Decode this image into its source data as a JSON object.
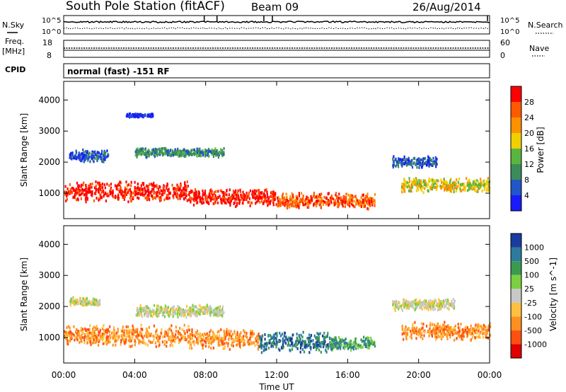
{
  "header": {
    "station": "South Pole Station (fitACF)",
    "beam": "Beam 09",
    "date": "26/Aug/2014"
  },
  "top_panels": {
    "nsky_label": "N.Sky",
    "nsearch_label": "N.Search",
    "noise_ticks": [
      "10^5",
      "10^0"
    ],
    "freq_label": "Freq.",
    "freq_unit": "[MHz]",
    "freq_ticks": [
      "18",
      "8"
    ],
    "nave_label": "Nave",
    "nave_ticks": [
      "60",
      "0"
    ],
    "cpid_label": "CPID",
    "cpid_text": "normal (fast) -151 RF"
  },
  "colors": {
    "power": [
      "#1a1aff",
      "#2255c8",
      "#3a8c5a",
      "#5ab440",
      "#f0d000",
      "#ff9000",
      "#ff5a00",
      "#ff0000"
    ],
    "velocity": [
      "#1a3ca0",
      "#2e7a9e",
      "#3a9a50",
      "#7ad040",
      "#c8c8c8",
      "#ffc040",
      "#ff9020",
      "#ff5010",
      "#e00000"
    ]
  },
  "chart_data": [
    {
      "type": "heatmap",
      "ylabel": "Slant Range [km]",
      "xlabel": "Time UT",
      "x_ticks": [
        "00:00",
        "04:00",
        "08:00",
        "12:00",
        "16:00",
        "20:00",
        "00:00"
      ],
      "y_ticks": [
        1000,
        2000,
        3000,
        4000
      ],
      "ylim": [
        180,
        4600
      ],
      "colorbar": {
        "label": "Power [dB]",
        "ticks": [
          4,
          8,
          12,
          16,
          20,
          24,
          28
        ]
      },
      "scatter_bands": [
        {
          "t_start": 0,
          "t_end": 7,
          "range_center": 1050,
          "range_width": 350,
          "level": 7
        },
        {
          "t_start": 7,
          "t_end": 12,
          "range_center": 850,
          "range_width": 300,
          "level": 7
        },
        {
          "t_start": 12,
          "t_end": 17.5,
          "range_center": 750,
          "range_width": 280,
          "level": 6
        },
        {
          "t_start": 19,
          "t_end": 24,
          "range_center": 1250,
          "range_width": 250,
          "level": 4
        },
        {
          "t_start": 0.3,
          "t_end": 2.5,
          "range_center": 2200,
          "range_width": 200,
          "level": 1
        },
        {
          "t_start": 4,
          "t_end": 9,
          "range_center": 2300,
          "range_width": 150,
          "level": 2
        },
        {
          "t_start": 3.5,
          "t_end": 5,
          "range_center": 3500,
          "range_width": 60,
          "level": 0
        },
        {
          "t_start": 18.5,
          "t_end": 21,
          "range_center": 2000,
          "range_width": 200,
          "level": 1
        }
      ]
    },
    {
      "type": "heatmap",
      "ylabel": "Slant Range [km]",
      "xlabel": "Time UT",
      "x_ticks": [
        "00:00",
        "04:00",
        "08:00",
        "12:00",
        "16:00",
        "20:00",
        "00:00"
      ],
      "y_ticks": [
        1000,
        2000,
        3000,
        4000
      ],
      "ylim": [
        180,
        4600
      ],
      "colorbar": {
        "label": "Velocity [m s^-1]",
        "ticks": [
          1000,
          500,
          100,
          25,
          -25,
          -100,
          -500,
          -1000
        ]
      },
      "scatter_bands": [
        {
          "t_start": 0,
          "t_end": 7,
          "range_center": 1050,
          "range_width": 380,
          "level": 6
        },
        {
          "t_start": 7,
          "t_end": 11,
          "range_center": 950,
          "range_width": 350,
          "level": 6
        },
        {
          "t_start": 11,
          "t_end": 15,
          "range_center": 850,
          "range_width": 350,
          "level": 1
        },
        {
          "t_start": 15,
          "t_end": 17.5,
          "range_center": 800,
          "range_width": 250,
          "level": 2
        },
        {
          "t_start": 19,
          "t_end": 24,
          "range_center": 1200,
          "range_width": 300,
          "level": 6
        },
        {
          "t_start": 0.3,
          "t_end": 2,
          "range_center": 2150,
          "range_width": 150,
          "level": 4
        },
        {
          "t_start": 4,
          "t_end": 9,
          "range_center": 1850,
          "range_width": 200,
          "level": 4
        },
        {
          "t_start": 18.5,
          "t_end": 22,
          "range_center": 2050,
          "range_width": 200,
          "level": 4
        }
      ]
    }
  ]
}
